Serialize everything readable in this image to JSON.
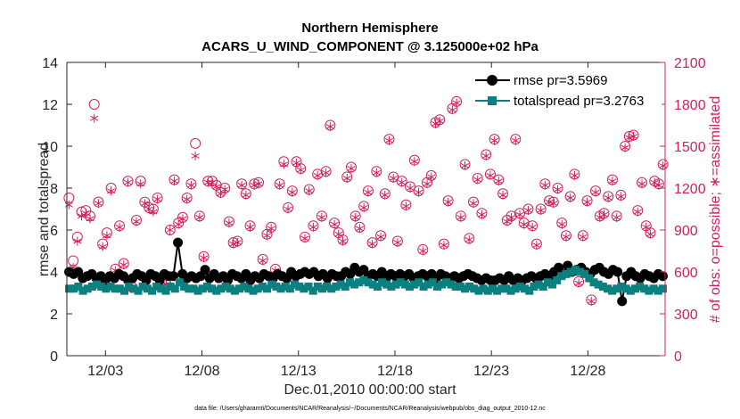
{
  "chart_data": {
    "type": "line",
    "title": "Northern Hemisphere",
    "subtitle": "ACARS_U_WIND_COMPONENT @ 3.125000e+02 hPa",
    "xlabel": "Dec.01,2010 00:00:00 start",
    "ylabel_left": "rmse and totalspread",
    "ylabel_right": "# of obs: o=possible; ∗=assimilated",
    "footnote": "data file: /Users/gharamti/Documents/NCAR/Reanalysis/~/Documents/NCAR/Reanalysis/webpub/obs_diag_output_2010-12.nc",
    "x_unit": "days since Dec.01,2010",
    "xlim": [
      0,
      31
    ],
    "x_ticks": [
      2,
      7,
      12,
      17,
      22,
      27
    ],
    "x_tick_labels": [
      "12/03",
      "12/08",
      "12/13",
      "12/18",
      "12/23",
      "12/28"
    ],
    "ylim_left": [
      0,
      14
    ],
    "y_ticks_left": [
      "0",
      "2",
      "4",
      "6",
      "8",
      "10",
      "12",
      "14"
    ],
    "ylim_right": [
      0,
      2100
    ],
    "y_ticks_right": [
      "0",
      "300",
      "600",
      "900",
      "1200",
      "1500",
      "1800",
      "2100"
    ],
    "grid": false,
    "legend_location": "top-right",
    "colors": {
      "rmse": "#000000",
      "totalspread": "#0a8080",
      "obs": "#d0215c",
      "axis": "#262626"
    },
    "series": [
      {
        "name": "rmse",
        "legend": "rmse pr=3.5969",
        "axis": "left",
        "marker": "circle",
        "values": [
          4.0,
          3.9,
          4.0,
          3.7,
          3.8,
          3.9,
          3.7,
          3.8,
          3.6,
          3.8,
          3.7,
          3.9,
          3.8,
          3.6,
          3.7,
          3.9,
          3.8,
          3.6,
          3.9,
          3.8,
          3.6,
          3.9,
          3.8,
          3.8,
          5.4,
          3.9,
          3.7,
          3.8,
          3.7,
          3.8,
          4.1,
          3.7,
          3.9,
          3.7,
          3.8,
          3.6,
          3.9,
          3.8,
          3.7,
          3.9,
          3.6,
          3.8,
          3.7,
          3.9,
          3.8,
          3.7,
          3.9,
          3.8,
          3.7,
          4.0,
          3.8,
          3.9,
          4.0,
          3.9,
          4.0,
          3.8,
          3.9,
          3.7,
          3.9,
          3.8,
          3.8,
          4.0,
          3.9,
          4.2,
          4.0,
          4.1,
          3.8,
          3.9,
          3.8,
          4.0,
          3.7,
          3.9,
          3.8,
          3.9,
          3.8,
          3.9,
          3.7,
          3.8,
          3.9,
          3.8,
          3.9,
          3.7,
          3.9,
          3.8,
          3.7,
          3.8,
          3.7,
          3.8,
          3.9,
          3.8,
          3.7,
          3.6,
          3.7,
          3.6,
          3.6,
          3.7,
          3.6,
          3.8,
          3.6,
          3.7,
          3.6,
          3.7,
          3.8,
          3.7,
          3.8,
          3.9,
          3.8,
          4.0,
          4.2,
          3.9,
          4.3,
          4.0,
          4.1,
          4.2,
          4.0,
          3.9,
          4.1,
          4.2,
          4.0,
          3.9,
          4.1,
          4.0,
          2.6,
          3.8,
          4.0,
          3.8,
          3.7,
          3.9,
          3.8,
          3.7,
          3.9,
          3.8
        ]
      },
      {
        "name": "totalspread",
        "legend": "totalspread pr=3.2763",
        "axis": "left",
        "marker": "square",
        "values": [
          3.2,
          3.2,
          3.3,
          3.1,
          3.2,
          3.3,
          3.4,
          3.3,
          3.2,
          3.3,
          3.2,
          3.2,
          3.1,
          3.3,
          3.2,
          3.1,
          3.3,
          3.2,
          3.1,
          3.3,
          3.2,
          3.1,
          3.3,
          3.2,
          3.5,
          3.3,
          3.2,
          3.2,
          3.1,
          3.2,
          3.3,
          3.2,
          3.1,
          3.2,
          3.3,
          3.2,
          3.1,
          3.2,
          3.3,
          3.2,
          3.1,
          3.2,
          3.3,
          3.2,
          3.4,
          3.3,
          3.2,
          3.3,
          3.2,
          3.4,
          3.3,
          3.2,
          3.3,
          3.1,
          3.3,
          3.2,
          3.3,
          3.2,
          3.3,
          3.4,
          3.3,
          3.5,
          3.4,
          3.5,
          3.6,
          3.5,
          3.4,
          3.3,
          3.5,
          3.4,
          3.3,
          3.4,
          3.5,
          3.4,
          3.3,
          3.4,
          3.5,
          3.3,
          3.4,
          3.5,
          3.3,
          3.4,
          3.5,
          3.4,
          3.3,
          3.3,
          3.2,
          3.3,
          3.2,
          3.1,
          3.2,
          3.1,
          3.2,
          3.1,
          3.2,
          3.2,
          3.1,
          3.2,
          3.3,
          3.2,
          3.1,
          3.3,
          3.4,
          3.3,
          3.5,
          3.4,
          3.6,
          3.8,
          3.9,
          4.0,
          4.1,
          4.0,
          3.9,
          3.7,
          3.5,
          3.4,
          3.3,
          3.2,
          3.1,
          3.2,
          3.3,
          3.2,
          3.1,
          3.2,
          3.3,
          3.2,
          3.1,
          3.2,
          3.1,
          3.2
        ]
      },
      {
        "name": "obs_possible",
        "axis": "right",
        "marker": "open-circle",
        "values": [
          1130,
          680,
          850,
          1030,
          1040,
          1000,
          1800,
          1100,
          800,
          880,
          1200,
          620,
          930,
          660,
          1250,
          490,
          970,
          1250,
          1100,
          1060,
          1050,
          1130,
          540,
          520,
          900,
          1260,
          950,
          990,
          1130,
          1230,
          1520,
          1000,
          710,
          1250,
          1250,
          1220,
          1170,
          1200,
          960,
          810,
          820,
          1230,
          1160,
          930,
          1230,
          1240,
          690,
          870,
          920,
          620,
          1230,
          1390,
          1060,
          1180,
          1390,
          1340,
          850,
          1190,
          930,
          1300,
          1000,
          1320,
          1650,
          950,
          880,
          830,
          1280,
          1350,
          1000,
          920,
          1070,
          1180,
          810,
          1320,
          860,
          1160,
          1550,
          1280,
          820,
          1250,
          1080,
          1210,
          1400,
          1180,
          760,
          1240,
          1290,
          1670,
          1690,
          800,
          1110,
          1770,
          1820,
          1000,
          1370,
          840,
          1100,
          1270,
          1020,
          1440,
          1300,
          1550,
          1260,
          1160,
          970,
          1000,
          1550,
          1020,
          950,
          1050,
          930,
          800,
          1050,
          1230,
          1110,
          1100,
          1200,
          950,
          860,
          1140,
          1300,
          530,
          860,
          1110,
          400,
          1180,
          1000,
          1020,
          1140,
          1260,
          1000,
          1150,
          1500,
          1570,
          1580,
          1040,
          1240,
          930,
          880,
          1250,
          1230,
          1370
        ]
      },
      {
        "name": "obs_assimilated",
        "axis": "right",
        "marker": "asterisk",
        "values": [
          1080,
          630,
          820,
          1000,
          1020,
          980,
          1700,
          1090,
          780,
          860,
          1180,
          610,
          920,
          650,
          1240,
          480,
          960,
          1230,
          1090,
          1050,
          1030,
          1120,
          530,
          510,
          900,
          1250,
          940,
          980,
          1120,
          1220,
          1430,
          990,
          700,
          1240,
          1240,
          1210,
          1160,
          1190,
          950,
          800,
          810,
          1220,
          1150,
          920,
          1220,
          1230,
          680,
          860,
          910,
          610,
          1220,
          1370,
          1050,
          1170,
          1380,
          1330,
          840,
          1180,
          920,
          1290,
          990,
          1310,
          1640,
          940,
          870,
          820,
          1270,
          1340,
          990,
          910,
          1060,
          1170,
          800,
          1310,
          850,
          1150,
          1540,
          1270,
          810,
          1240,
          1070,
          1200,
          1390,
          1170,
          750,
          1230,
          1280,
          1660,
          1680,
          790,
          1100,
          1760,
          1810,
          990,
          1360,
          830,
          1090,
          1260,
          1010,
          1430,
          1290,
          1540,
          1250,
          1150,
          960,
          990,
          1540,
          1010,
          940,
          1040,
          920,
          790,
          1040,
          1220,
          1100,
          1090,
          1190,
          940,
          850,
          1130,
          1290,
          520,
          850,
          1100,
          390,
          1170,
          990,
          1010,
          1130,
          1250,
          990,
          1140,
          1490,
          1560,
          1570,
          1030,
          1230,
          920,
          870,
          1240,
          1220,
          1360
        ]
      }
    ]
  }
}
